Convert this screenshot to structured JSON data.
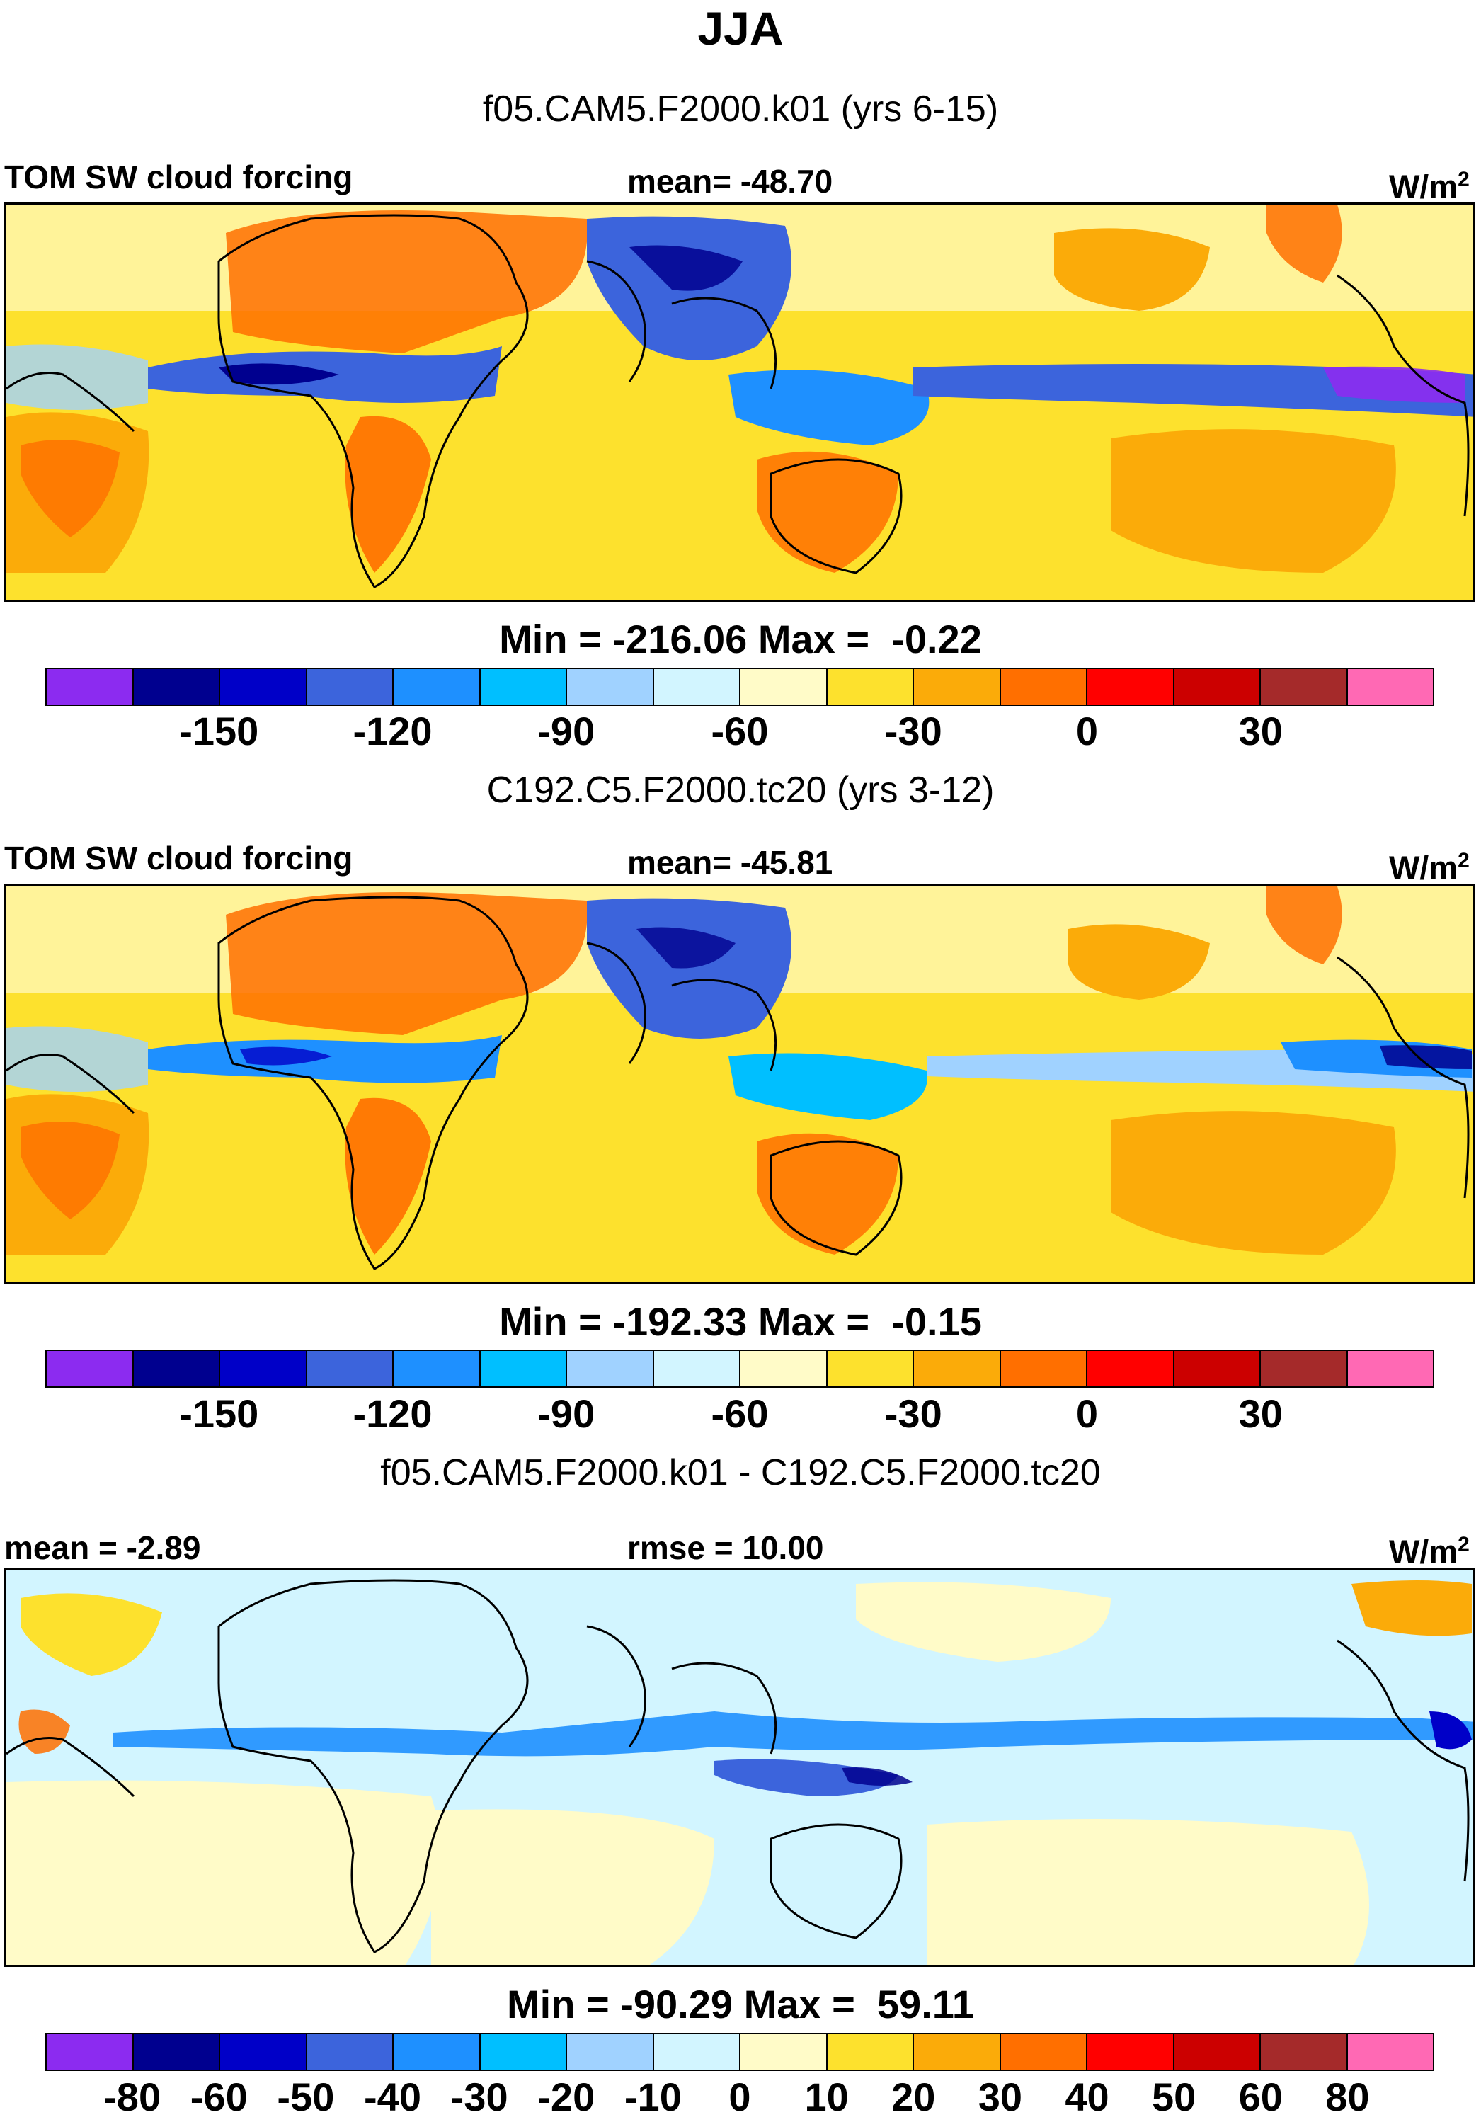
{
  "figure": {
    "title": "JJA",
    "units_main": "W/m",
    "units_sup": "2"
  },
  "chart_data": [
    {
      "type": "heatmap",
      "subtitle": "f05.CAM5.F2000.k01 (yrs 6-15)",
      "left_label": "TOM SW cloud forcing",
      "center_label": "mean= -48.70",
      "min_max": "Min = -216.06 Max =  -0.22",
      "min": -216.06,
      "max": -0.22,
      "mean": -48.7,
      "colorbar_ticks": [
        "-150",
        "-120",
        "-90",
        "-60",
        "-30",
        "0",
        "30"
      ],
      "colorbar_tick_boundaries": [
        2,
        4,
        6,
        8,
        10,
        12,
        14
      ],
      "colorbar_colors": [
        "#8c2bf0",
        "#00008f",
        "#0000c8",
        "#3c64dc",
        "#1e90ff",
        "#00bfff",
        "#a0d2ff",
        "#d2f5ff",
        "#fffbc8",
        "#fde12d",
        "#fbab09",
        "#ff6f00",
        "#ff0000",
        "#cc0000",
        "#a52a2a",
        "#ff69b4"
      ]
    },
    {
      "type": "heatmap",
      "subtitle": "C192.C5.F2000.tc20 (yrs 3-12)",
      "left_label": "TOM SW cloud forcing",
      "center_label": "mean= -45.81",
      "min_max": "Min = -192.33 Max =  -0.15",
      "min": -192.33,
      "max": -0.15,
      "mean": -45.81,
      "colorbar_ticks": [
        "-150",
        "-120",
        "-90",
        "-60",
        "-30",
        "0",
        "30"
      ],
      "colorbar_tick_boundaries": [
        2,
        4,
        6,
        8,
        10,
        12,
        14
      ],
      "colorbar_colors": [
        "#8c2bf0",
        "#00008f",
        "#0000c8",
        "#3c64dc",
        "#1e90ff",
        "#00bfff",
        "#a0d2ff",
        "#d2f5ff",
        "#fffbc8",
        "#fde12d",
        "#fbab09",
        "#ff6f00",
        "#ff0000",
        "#cc0000",
        "#a52a2a",
        "#ff69b4"
      ]
    },
    {
      "type": "heatmap",
      "subtitle": "f05.CAM5.F2000.k01 - C192.C5.F2000.tc20",
      "left_label": "mean =  -2.89",
      "center_label": "rmse =  10.00",
      "min_max": "Min = -90.29 Max =  59.11",
      "min": -90.29,
      "max": 59.11,
      "mean": -2.89,
      "rmse": 10.0,
      "colorbar_ticks": [
        "-80",
        "-60",
        "-50",
        "-40",
        "-30",
        "-20",
        "-10",
        "0",
        "10",
        "20",
        "30",
        "40",
        "50",
        "60",
        "80"
      ],
      "colorbar_tick_boundaries": [
        1,
        2,
        3,
        4,
        5,
        6,
        7,
        8,
        9,
        10,
        11,
        12,
        13,
        14,
        15
      ],
      "colorbar_colors": [
        "#8c2bf0",
        "#00008f",
        "#0000c8",
        "#3c64dc",
        "#1e90ff",
        "#00bfff",
        "#a0d2ff",
        "#d2f5ff",
        "#fffbc8",
        "#fde12d",
        "#fbab09",
        "#ff6f00",
        "#ff0000",
        "#cc0000",
        "#a52a2a",
        "#ff69b4"
      ]
    }
  ]
}
